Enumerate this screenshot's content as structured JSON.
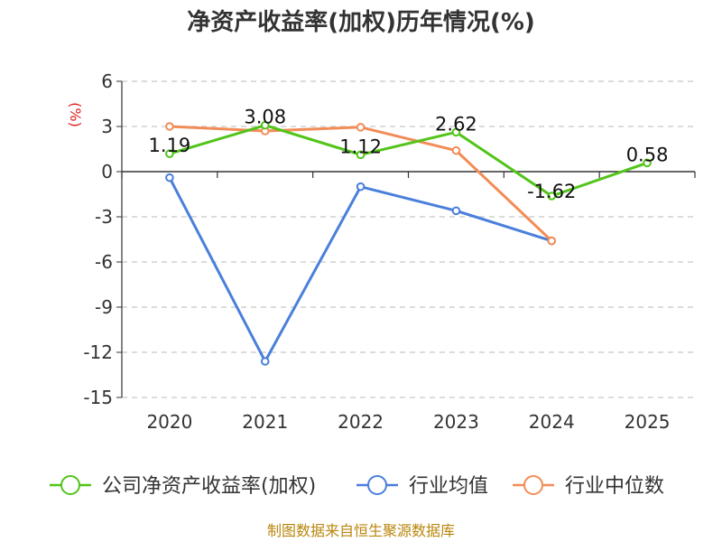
{
  "chart_data": {
    "type": "line",
    "title": "净资产收益率(加权)历年情况(%)",
    "xlabel": "",
    "ylabel": "(%)",
    "categories": [
      "2020",
      "2021",
      "2022",
      "2023",
      "2024",
      "2025"
    ],
    "ylim": [
      -15,
      6
    ],
    "yticks": [
      6,
      3,
      0,
      -3,
      -6,
      -9,
      -12,
      -15
    ],
    "grid": true,
    "legend_position": "bottom",
    "series": [
      {
        "name": "公司净资产收益率(加权)",
        "color": "#52c41a",
        "values": [
          1.19,
          3.08,
          1.12,
          2.62,
          -1.62,
          0.58
        ],
        "labels": [
          "1.19",
          "3.08",
          "1.12",
          "2.62",
          "-1.62",
          "0.58"
        ]
      },
      {
        "name": "行业均值",
        "color": "#4a7fdb",
        "values": [
          -0.4,
          -12.6,
          -1.0,
          -2.6,
          -4.6,
          null
        ]
      },
      {
        "name": "行业中位数",
        "color": "#f28c57",
        "values": [
          3.0,
          2.7,
          2.95,
          1.4,
          -4.6,
          null
        ]
      }
    ]
  },
  "source": "制图数据来自恒生聚源数据库"
}
